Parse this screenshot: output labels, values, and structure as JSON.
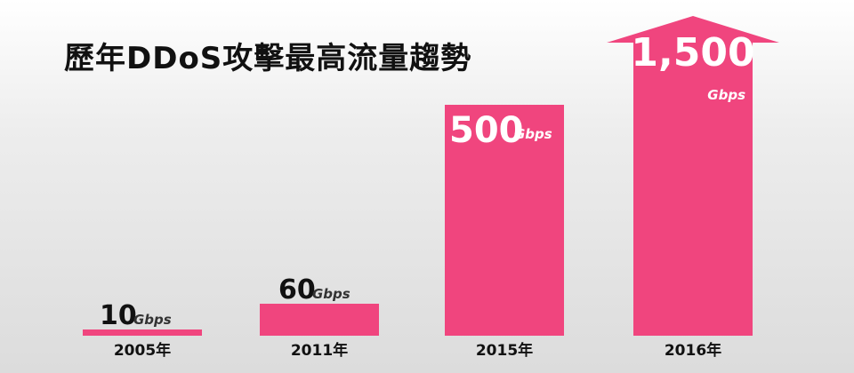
{
  "chart_data": {
    "type": "bar",
    "title": "歷年DDoS攻擊最高流量趨勢",
    "categories": [
      "2005年",
      "2011年",
      "2015年",
      "2016年"
    ],
    "values": [
      10,
      60,
      500,
      1500
    ],
    "value_labels": [
      "10",
      "60",
      "500",
      "1,500"
    ],
    "unit": "Gbps",
    "xlabel": "",
    "ylabel": "",
    "grid": false,
    "legend": "none",
    "bar_color": "#f0457e",
    "label_color_dark": "#111111",
    "label_color_light": "#ffffff",
    "last_bar_arrow": true
  }
}
